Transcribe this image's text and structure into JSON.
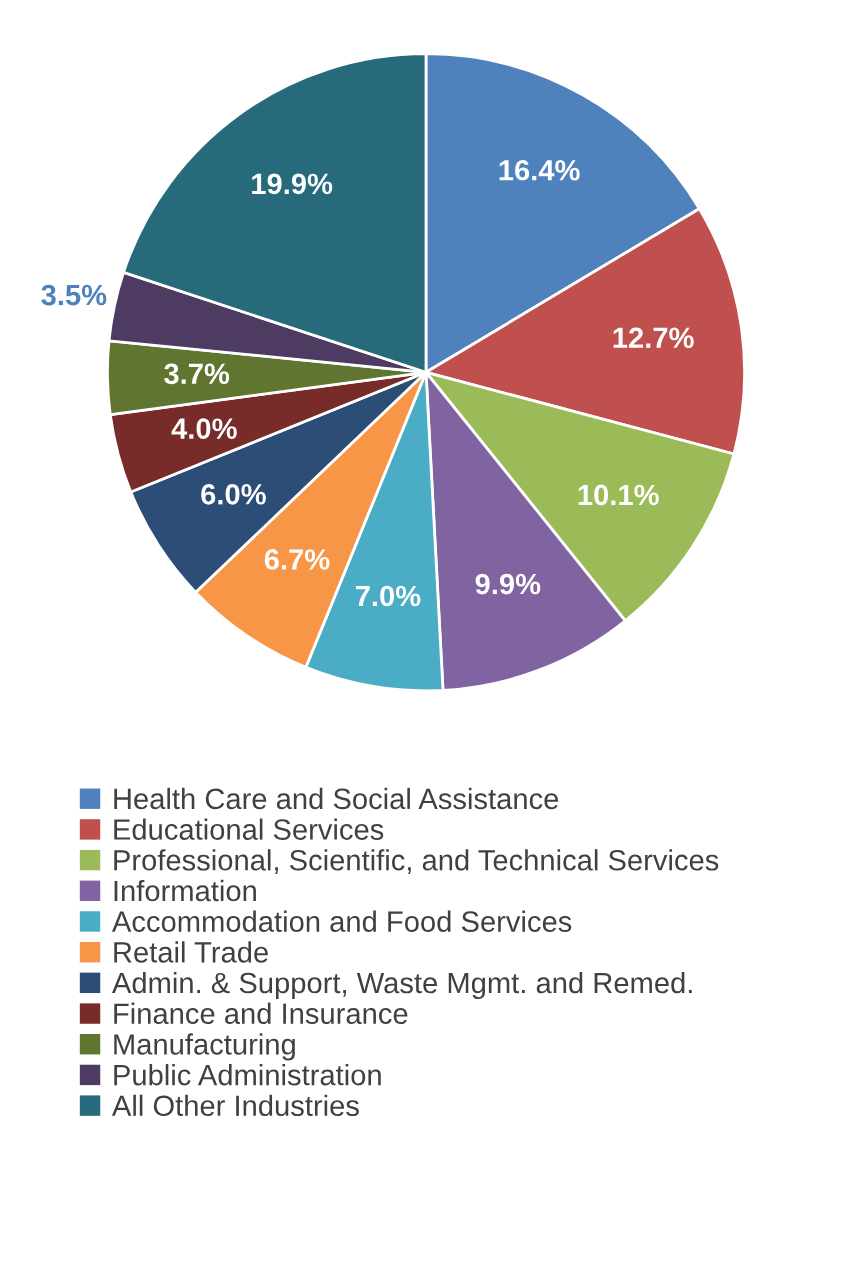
{
  "chart_data": {
    "type": "pie",
    "categories": [
      "Health Care and Social Assistance",
      "Educational Services",
      "Professional, Scientific, and Technical Services",
      "Information",
      "Accommodation and Food Services",
      "Retail Trade",
      "Admin. & Support, Waste Mgmt. and Remed.",
      "Finance and Insurance",
      "Manufacturing",
      "Public Administration",
      "All Other Industries"
    ],
    "values": [
      16.4,
      12.7,
      10.1,
      9.9,
      7.0,
      6.7,
      6.0,
      4.0,
      3.7,
      3.5,
      19.9
    ],
    "colors": [
      "#4f81bd",
      "#c0504d",
      "#9bbb59",
      "#8064a2",
      "#4bacc6",
      "#f79646",
      "#2c4d75",
      "#772c2a",
      "#5f7530",
      "#4d3b62",
      "#276a7c"
    ],
    "value_labels": [
      "16.4%",
      "12.7%",
      "10.1%",
      "9.9%",
      "7.0%",
      "6.7%",
      "6.0%",
      "4.0%",
      "3.7%",
      "3.5%",
      "19.9%"
    ],
    "legend": "bottom"
  }
}
